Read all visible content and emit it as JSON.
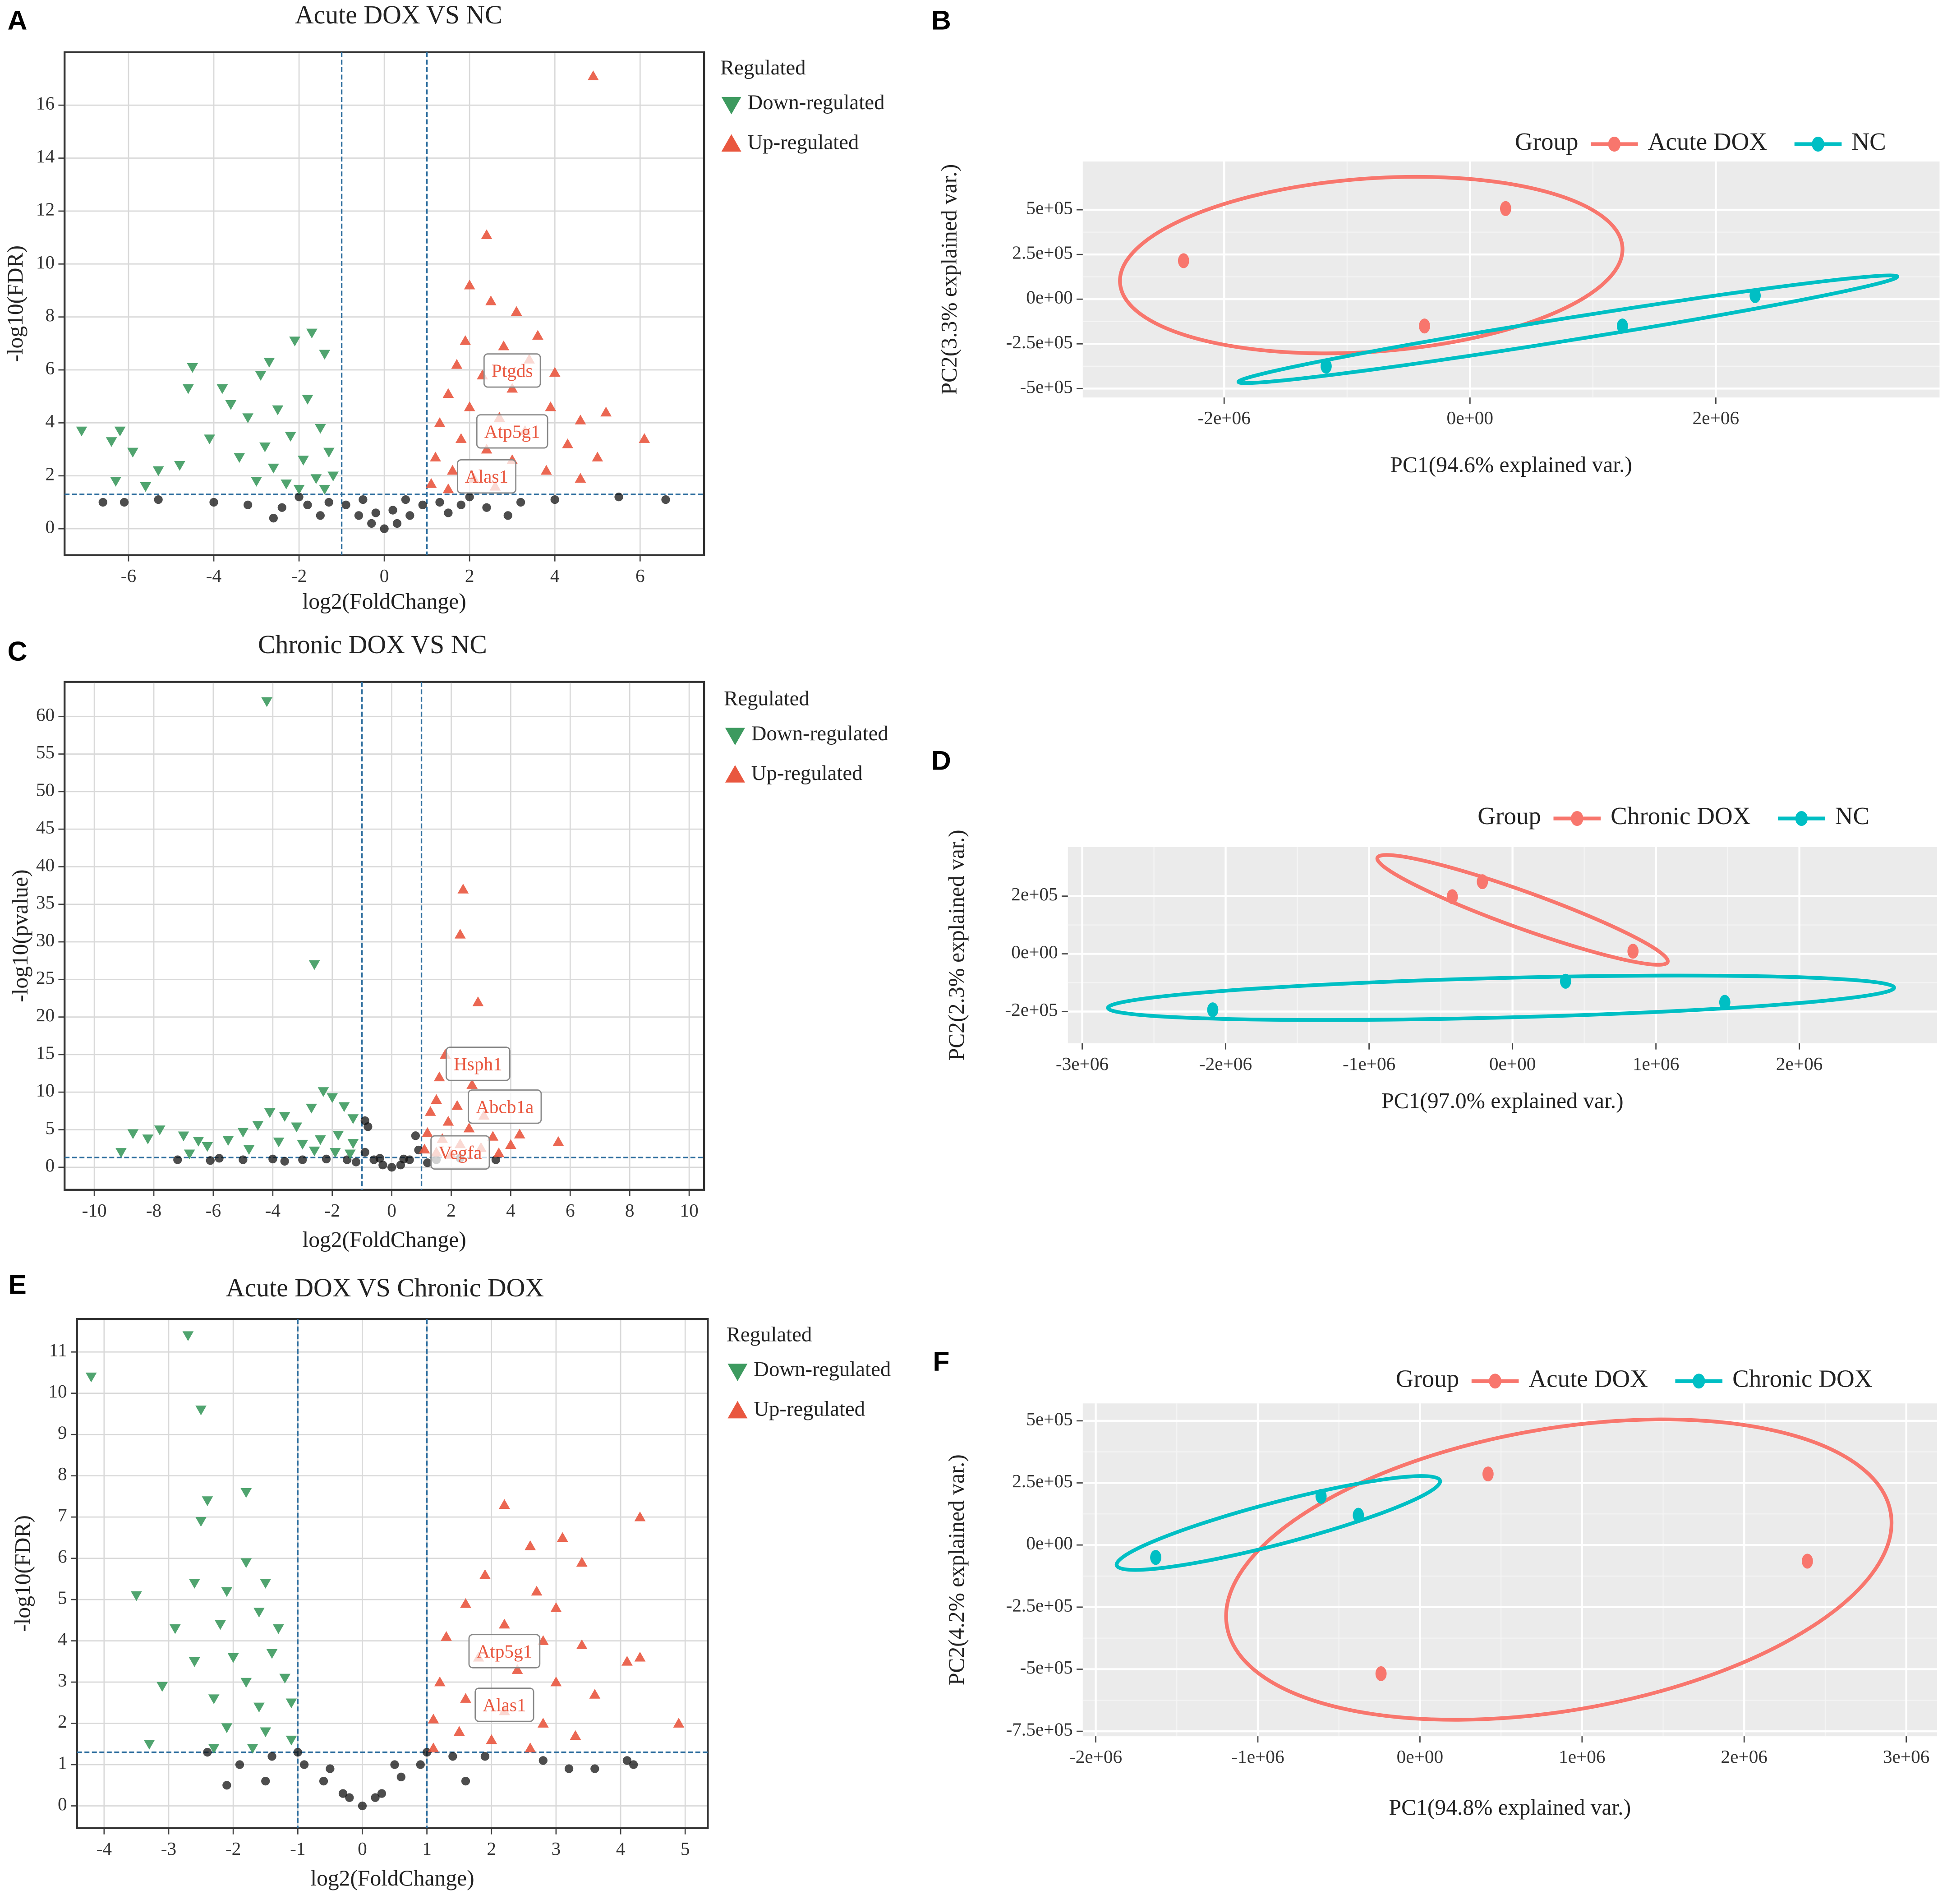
{
  "chart_data": [
    {
      "panel": "A",
      "type": "scatter",
      "title": "Acute DOX VS NC",
      "x_label": "log2(FoldChange)",
      "y_label": "-log10(FDR)",
      "xlim": [
        -7.5,
        7.5
      ],
      "ylim": [
        -1,
        18
      ],
      "xticks": [
        -6,
        -4,
        -2,
        0,
        2,
        4,
        6
      ],
      "yticks": [
        0,
        2,
        4,
        6,
        8,
        10,
        12,
        14,
        16
      ],
      "grid": true,
      "legend_title": "Regulated",
      "legend_position": "right",
      "vlines": [
        -1,
        1
      ],
      "hline": 1.3,
      "series": [
        {
          "name": "Down-regulated",
          "color": "#3d9a5f",
          "marker": "triangle-down",
          "x": [
            -7.1,
            -6.4,
            -6.2,
            -5.9,
            -6.3,
            -5.3,
            -4.6,
            -4.5,
            -3.8,
            -3.6,
            -2.9,
            -2.7,
            -1.7,
            -2.1,
            -1.4,
            -3.2,
            -2.5,
            -1.8,
            -4.1,
            -3.4,
            -2.8,
            -2.2,
            -1.5,
            -2.6,
            -1.9,
            -1.3,
            -3.0,
            -2.3,
            -1.6,
            -1.2,
            -2.0,
            -1.4,
            -4.8,
            -5.6
          ],
          "values": [
            3.7,
            3.3,
            3.7,
            2.9,
            1.8,
            2.2,
            5.3,
            6.1,
            5.3,
            4.7,
            5.8,
            6.3,
            7.4,
            7.1,
            6.6,
            4.2,
            4.5,
            4.9,
            3.4,
            2.7,
            3.1,
            3.5,
            3.8,
            2.3,
            2.6,
            2.9,
            1.8,
            1.7,
            1.9,
            2.0,
            1.5,
            1.5,
            2.4,
            1.6
          ]
        },
        {
          "name": "Up-regulated",
          "color": "#e9573f",
          "marker": "triangle-up",
          "x": [
            4.9,
            2.4,
            2.0,
            2.5,
            3.1,
            3.6,
            1.9,
            2.8,
            3.4,
            4.0,
            1.7,
            2.3,
            3.0,
            3.9,
            4.6,
            5.2,
            6.1,
            1.5,
            2.0,
            2.7,
            3.3,
            4.3,
            5.0,
            1.3,
            1.8,
            2.4,
            3.0,
            3.8,
            1.2,
            1.6,
            2.1,
            1.1,
            1.5,
            2.6,
            4.6
          ],
          "values": [
            17.1,
            11.1,
            9.2,
            8.6,
            8.2,
            7.3,
            7.1,
            6.9,
            6.4,
            5.9,
            6.2,
            5.8,
            5.3,
            4.6,
            4.1,
            4.4,
            3.4,
            5.1,
            4.6,
            4.2,
            3.7,
            3.2,
            2.7,
            4.0,
            3.4,
            3.0,
            2.6,
            2.2,
            2.7,
            2.2,
            1.9,
            1.7,
            1.5,
            1.6,
            1.9
          ]
        },
        {
          "color": "#111111",
          "marker": "circle",
          "x": [
            0,
            -0.3,
            0.3,
            -0.6,
            0.6,
            -0.9,
            0.9,
            -0.5,
            0.5,
            -1.3,
            1.3,
            -1.8,
            1.8,
            -2.4,
            2.4,
            -3.2,
            3.2,
            -4.0,
            4.0,
            -5.3,
            5.5,
            -6.6,
            -6.1,
            6.6,
            -1.5,
            1.5,
            -2.0,
            2.0,
            -2.6,
            2.9,
            -0.2,
            0.2
          ],
          "values": [
            0,
            0.2,
            0.2,
            0.5,
            0.5,
            0.9,
            0.9,
            1.1,
            1.1,
            1.0,
            1.0,
            0.9,
            0.9,
            0.8,
            0.8,
            0.9,
            1.0,
            1.0,
            1.1,
            1.1,
            1.2,
            1.0,
            1.0,
            1.1,
            0.5,
            0.6,
            1.2,
            1.2,
            0.4,
            0.5,
            0.6,
            0.7
          ]
        }
      ],
      "annotations": [
        {
          "text": "Ptgds",
          "x": 3.0,
          "y": 5.9
        },
        {
          "text": "Atp5g1",
          "x": 3.0,
          "y": 3.6
        },
        {
          "text": "Alas1",
          "x": 2.4,
          "y": 1.9
        }
      ]
    },
    {
      "panel": "B",
      "type": "scatter",
      "x_label": "PC1(94.6% explained var.)",
      "y_label": "PC2(3.3% explained var.)",
      "xlim": [
        -3150000,
        3820000
      ],
      "ylim": [
        -550000,
        770000
      ],
      "xticks": [
        {
          "value": -2000000,
          "label": "-2e+06"
        },
        {
          "value": 0,
          "label": "0e+00"
        },
        {
          "value": 2000000,
          "label": "2e+06"
        }
      ],
      "yticks": [
        {
          "value": 500000,
          "label": "5e+05"
        },
        {
          "value": 250000,
          "label": "2.5e+05"
        },
        {
          "value": 0,
          "label": "0e+00"
        },
        {
          "value": -250000,
          "label": "-2.5e+05"
        },
        {
          "value": -500000,
          "label": "-5e+05"
        }
      ],
      "grid": true,
      "panel_background": "#ebebeb",
      "ellipses": true,
      "legend_title": "Group",
      "legend_position": "top",
      "series": [
        {
          "name": "Acute DOX",
          "color": "#f8766d",
          "x": [
            -2330000,
            290000,
            -370000
          ],
          "values": [
            215000,
            507000,
            -150000
          ]
        },
        {
          "name": "NC",
          "color": "#00bfc4",
          "x": [
            -1170000,
            1240000,
            2320000
          ],
          "values": [
            -375000,
            -150000,
            20000
          ]
        }
      ]
    },
    {
      "panel": "C",
      "type": "scatter",
      "title": "Chronic DOX VS NC",
      "x_label": "log2(FoldChange)",
      "y_label": "-log10(pvalue)",
      "xlim": [
        -11,
        10.5
      ],
      "ylim": [
        -3,
        64.6
      ],
      "xticks": [
        -10,
        -8,
        -6,
        -4,
        -2,
        0,
        2,
        4,
        6,
        8,
        10
      ],
      "yticks": [
        0,
        5,
        10,
        15,
        20,
        25,
        30,
        35,
        40,
        45,
        50,
        55,
        60
      ],
      "grid": true,
      "legend_title": "Regulated",
      "legend_position": "right",
      "vlines": [
        -1,
        1
      ],
      "hline": 1.3,
      "series": [
        {
          "name": "Down-regulated",
          "color": "#3d9a5f",
          "marker": "triangle-down",
          "x": [
            -4.2,
            -2.6,
            -8.7,
            -8.2,
            -7.8,
            -7.0,
            -6.5,
            -6.2,
            -5.5,
            -5.0,
            -4.5,
            -4.1,
            -3.6,
            -3.2,
            -2.7,
            -2.3,
            -2.0,
            -1.6,
            -1.3,
            -3.8,
            -3.0,
            -2.4,
            -1.8,
            -1.3,
            -2.6,
            -1.9,
            -1.4,
            -4.8,
            -9.1,
            -6.8
          ],
          "values": [
            62,
            27,
            4.5,
            3.8,
            5.0,
            4.2,
            3.5,
            2.8,
            3.6,
            4.7,
            5.6,
            7.3,
            6.8,
            5.4,
            7.9,
            10.1,
            9.3,
            8.1,
            6.5,
            3.4,
            3.1,
            3.7,
            4.3,
            3.2,
            2.2,
            2.0,
            1.8,
            2.4,
            2.0,
            1.8
          ]
        },
        {
          "name": "Up-regulated",
          "color": "#e9573f",
          "marker": "triangle-up",
          "x": [
            2.4,
            2.3,
            2.9,
            1.8,
            1.6,
            2.7,
            1.5,
            2.2,
            3.1,
            4.3,
            5.6,
            1.3,
            1.9,
            2.6,
            3.4,
            4.0,
            1.2,
            1.7,
            2.3,
            3.0,
            1.1,
            1.5,
            2.0,
            3.6
          ],
          "values": [
            37,
            31,
            22,
            15,
            12,
            11,
            9.0,
            8.2,
            6.9,
            4.4,
            3.4,
            7.4,
            6.1,
            5.2,
            4.1,
            3.0,
            4.6,
            3.8,
            3.1,
            2.6,
            2.4,
            2.0,
            1.7,
            1.9
          ]
        },
        {
          "color": "#111111",
          "marker": "circle",
          "x": [
            0,
            -0.3,
            0.3,
            -0.6,
            0.6,
            -0.9,
            0.9,
            -0.8,
            -0.9,
            0.8,
            -0.4,
            0.4,
            -1.5,
            1.5,
            -2.2,
            2.3,
            -3.0,
            -4.0,
            -5.0,
            -6.1,
            -7.2,
            -5.8,
            3.5,
            -3.6,
            -1.2,
            1.2
          ],
          "values": [
            0,
            0.3,
            0.3,
            1.0,
            1.0,
            2.0,
            2.3,
            5.4,
            6.2,
            4.2,
            1.2,
            1.1,
            1.0,
            1.0,
            1.1,
            1.2,
            1.0,
            1.1,
            1.0,
            0.9,
            1.0,
            1.2,
            1.0,
            0.8,
            0.7,
            0.6
          ]
        }
      ],
      "annotations": [
        {
          "text": "Hsph1",
          "x": 2.9,
          "y": 13.5
        },
        {
          "text": "Abcb1a",
          "x": 3.8,
          "y": 7.8
        },
        {
          "text": "Vegfa",
          "x": 2.3,
          "y": 1.7
        }
      ]
    },
    {
      "panel": "D",
      "type": "scatter",
      "x_label": "PC1(97.0% explained var.)",
      "y_label": "PC2(2.3% explained var.)",
      "xlim": [
        -3100000,
        2960000
      ],
      "ylim": [
        -310000,
        370000
      ],
      "xticks": [
        {
          "value": -3000000,
          "label": "-3e+06"
        },
        {
          "value": -2000000,
          "label": "-2e+06"
        },
        {
          "value": -1000000,
          "label": "-1e+06"
        },
        {
          "value": 0,
          "label": "0e+00"
        },
        {
          "value": 1000000,
          "label": "1e+06"
        },
        {
          "value": 2000000,
          "label": "2e+06"
        }
      ],
      "yticks": [
        {
          "value": 200000,
          "label": "2e+05"
        },
        {
          "value": 0,
          "label": "0e+00"
        },
        {
          "value": -200000,
          "label": "-2e+05"
        }
      ],
      "grid": true,
      "panel_background": "#ebebeb",
      "ellipses": true,
      "legend_title": "Group",
      "legend_position": "top",
      "series": [
        {
          "name": "Chronic DOX",
          "color": "#f8766d",
          "x": [
            -420000,
            -210000,
            840000
          ],
          "values": [
            198000,
            250000,
            9000
          ]
        },
        {
          "name": "NC",
          "color": "#00bfc4",
          "x": [
            -2090000,
            370000,
            1480000
          ],
          "values": [
            -194000,
            -95000,
            -168000
          ]
        }
      ]
    },
    {
      "panel": "E",
      "type": "scatter",
      "title": "Acute DOX VS Chronic DOX",
      "x_label": "log2(FoldChange)",
      "y_label": "-log10(FDR)",
      "xlim": [
        -4.42,
        5.35
      ],
      "ylim": [
        -0.54,
        11.8
      ],
      "xticks": [
        -4,
        -3,
        -2,
        -1,
        0,
        1,
        2,
        3,
        4,
        5
      ],
      "yticks": [
        0,
        1,
        2,
        3,
        4,
        5,
        6,
        7,
        8,
        9,
        10,
        11
      ],
      "grid": true,
      "legend_title": "Regulated",
      "legend_position": "right",
      "vlines": [
        -1,
        1
      ],
      "hline": 1.3,
      "series": [
        {
          "name": "Down-regulated",
          "color": "#3d9a5f",
          "marker": "triangle-down",
          "x": [
            -4.2,
            -2.7,
            -2.5,
            -3.5,
            -2.4,
            -1.8,
            -2.5,
            -2.6,
            -2.9,
            -3.1,
            -3.3,
            -2.1,
            -1.8,
            -1.5,
            -2.2,
            -1.6,
            -1.3,
            -2.0,
            -1.4,
            -2.6,
            -1.8,
            -1.2,
            -2.3,
            -1.6,
            -1.1,
            -2.1,
            -1.5,
            -1.1,
            -2.3,
            -1.7
          ],
          "values": [
            10.4,
            11.4,
            9.6,
            5.1,
            7.4,
            7.6,
            6.9,
            5.4,
            4.3,
            2.9,
            1.5,
            5.2,
            5.9,
            5.4,
            4.4,
            4.7,
            4.3,
            3.6,
            3.7,
            3.5,
            3.0,
            3.1,
            2.6,
            2.4,
            2.5,
            1.9,
            1.8,
            1.6,
            1.4,
            1.4
          ]
        },
        {
          "name": "Up-regulated",
          "color": "#e9573f",
          "marker": "triangle-up",
          "x": [
            2.2,
            4.3,
            2.6,
            3.1,
            3.4,
            1.9,
            2.7,
            3.0,
            4.1,
            4.3,
            4.9,
            1.6,
            2.2,
            2.8,
            3.4,
            1.3,
            1.8,
            2.4,
            3.0,
            3.6,
            1.2,
            1.6,
            2.2,
            2.8,
            1.1,
            1.5,
            2.0,
            3.3,
            1.1,
            2.6
          ],
          "values": [
            7.3,
            7.0,
            6.3,
            6.5,
            5.9,
            5.6,
            5.2,
            4.8,
            3.5,
            3.6,
            2.0,
            4.9,
            4.4,
            4.0,
            3.9,
            4.1,
            3.6,
            3.3,
            3.0,
            2.7,
            3.0,
            2.6,
            2.3,
            2.0,
            2.1,
            1.8,
            1.6,
            1.7,
            1.4,
            1.4
          ]
        },
        {
          "color": "#111111",
          "marker": "circle",
          "x": [
            0,
            -0.3,
            0.3,
            -0.6,
            0.6,
            -0.9,
            0.9,
            -1.0,
            1.0,
            -0.5,
            0.5,
            -1.4,
            1.4,
            -1.9,
            1.9,
            -2.1,
            -1.5,
            1.6,
            2.8,
            3.2,
            3.6,
            4.1,
            4.2,
            -2.4,
            -0.2,
            0.2
          ],
          "values": [
            0,
            0.3,
            0.3,
            0.6,
            0.7,
            1.0,
            1.0,
            1.3,
            1.3,
            0.9,
            1.0,
            1.2,
            1.2,
            1.0,
            1.2,
            0.5,
            0.6,
            0.6,
            1.1,
            0.9,
            0.9,
            1.1,
            1.0,
            1.3,
            0.2,
            0.2
          ]
        }
      ],
      "annotations": [
        {
          "text": "Atp5g1",
          "x": 2.2,
          "y": 3.7
        },
        {
          "text": "Alas1",
          "x": 2.2,
          "y": 2.4
        }
      ]
    },
    {
      "panel": "F",
      "type": "scatter",
      "x_label": "PC1(94.8% explained var.)",
      "y_label": "PC2(4.2% explained var.)",
      "xlim": [
        -2080000,
        3190000
      ],
      "ylim": [
        -770000,
        570000
      ],
      "xticks": [
        {
          "value": -2000000,
          "label": "-2e+06"
        },
        {
          "value": -1000000,
          "label": "-1e+06"
        },
        {
          "value": 0,
          "label": "0e+00"
        },
        {
          "value": 1000000,
          "label": "1e+06"
        },
        {
          "value": 2000000,
          "label": "2e+06"
        },
        {
          "value": 3000000,
          "label": "3e+06"
        }
      ],
      "yticks": [
        {
          "value": 500000,
          "label": "5e+05"
        },
        {
          "value": 250000,
          "label": "2.5e+05"
        },
        {
          "value": 0,
          "label": "0e+00"
        },
        {
          "value": -250000,
          "label": "-2.5e+05"
        },
        {
          "value": -500000,
          "label": "-5e+05"
        },
        {
          "value": -750000,
          "label": "-7.5e+05"
        }
      ],
      "grid": true,
      "panel_background": "#ebebeb",
      "ellipses": true,
      "legend_title": "Group",
      "legend_position": "top",
      "series": [
        {
          "name": "Acute DOX",
          "color": "#f8766d",
          "x": [
            420000,
            2390000,
            -240000
          ],
          "values": [
            286000,
            -65000,
            -518000
          ]
        },
        {
          "name": "Chronic DOX",
          "color": "#00bfc4",
          "x": [
            -1630000,
            -610000,
            -380000
          ],
          "values": [
            -50000,
            196000,
            120000
          ]
        }
      ]
    }
  ]
}
